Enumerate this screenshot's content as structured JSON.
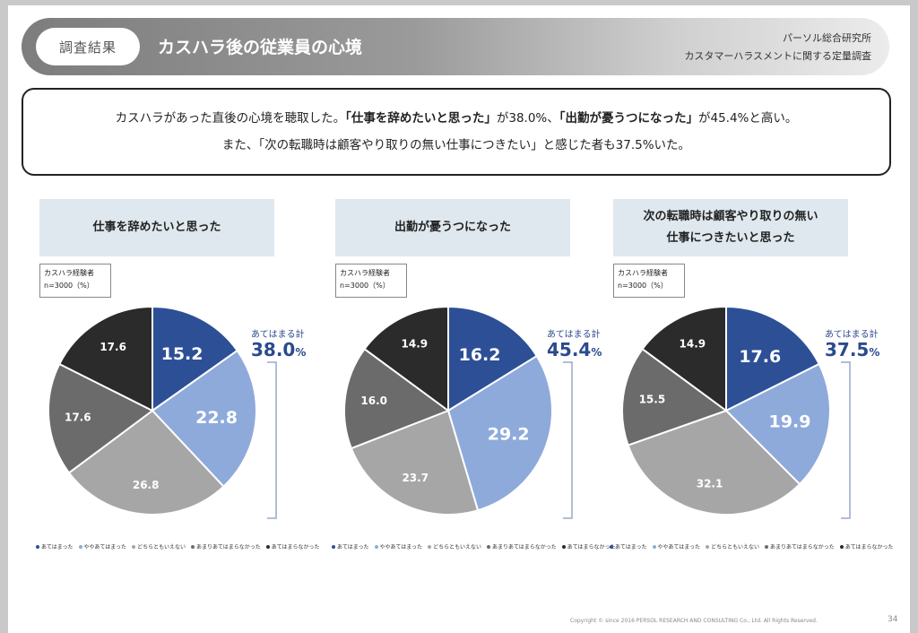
{
  "header": {
    "tag": "調査結果",
    "title": "カスハラ後の従業員の心境",
    "org_line1": "パーソル総合研究所",
    "org_line2": "カスタマーハラスメントに関する定量調査"
  },
  "summary": {
    "line1_pre": "カスハラがあった直後の心境を聴取した。",
    "line1_q1": "「仕事を辞めたいと思った」",
    "line1_mid": "が38.0%、",
    "line1_q2": "「出勤が憂うつになった」",
    "line1_post": "が45.4%と高い。",
    "line2": "また、「次の転職時は顧客やり取りの無い仕事につきたい」と感じた者も37.5%いた。"
  },
  "legend_labels": [
    "あてはまった",
    "ややあてはまった",
    "どちらともいえない",
    "あまりあてはまらなかった",
    "あてはまらなかった"
  ],
  "colors": [
    "#2d4f96",
    "#8eaadb",
    "#a6a6a6",
    "#6b6b6b",
    "#2b2b2b"
  ],
  "label_colors": [
    "#ffffff",
    "#ffffff",
    "#ffffff",
    "#ffffff",
    "#ffffff"
  ],
  "sample_label_1": "カスハラ経験者",
  "sample_label_2": "n=3000（%）",
  "bracket_label": "あてはまる計",
  "footer": {
    "copyright": "Copyright © since 2016 PERSOL RESEARCH AND CONSULTING Co., Ltd. All Rights Reserved.",
    "page": "34"
  },
  "chart_data": [
    {
      "type": "pie",
      "title": "仕事を辞めたいと思った",
      "title_lines": [
        "仕事を辞めたいと思った"
      ],
      "categories": [
        "あてはまった",
        "ややあてはまった",
        "どちらともいえない",
        "あまりあてはまらなかった",
        "あてはまらなかった"
      ],
      "values": [
        15.2,
        22.8,
        26.8,
        17.6,
        17.6
      ],
      "total_label": "38.0"
    },
    {
      "type": "pie",
      "title": "出勤が憂うつになった",
      "title_lines": [
        "出勤が憂うつになった"
      ],
      "categories": [
        "あてはまった",
        "ややあてはまった",
        "どちらともいえない",
        "あまりあてはまらなかった",
        "あてはまらなかった"
      ],
      "values": [
        16.2,
        29.2,
        23.7,
        16.0,
        14.9
      ],
      "total_label": "45.4"
    },
    {
      "type": "pie",
      "title": "次の転職時は顧客やり取りの無い仕事につきたいと思った",
      "title_lines": [
        "次の転職時は顧客やり取りの無い",
        "仕事につきたいと思った"
      ],
      "categories": [
        "あてはまった",
        "ややあてはまった",
        "どちらともいえない",
        "あまりあてはまらなかった",
        "あてはまらなかった"
      ],
      "values": [
        17.6,
        19.9,
        32.1,
        15.5,
        14.9
      ],
      "total_label": "37.5"
    }
  ]
}
